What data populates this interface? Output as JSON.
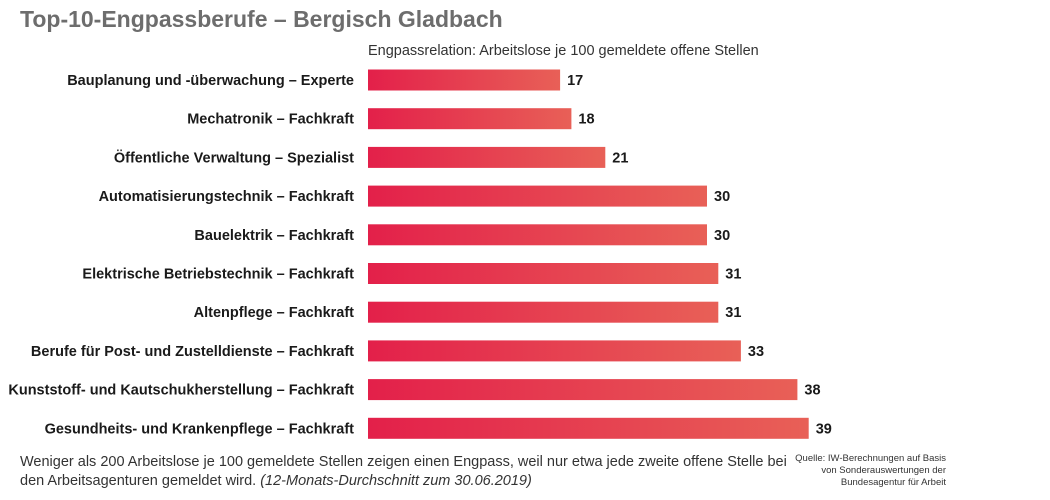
{
  "title": "Top-10-Engpassberufe – Bergisch Gladbach",
  "chart_data": {
    "type": "bar",
    "orientation": "horizontal",
    "subtitle": "Engpassrelation: Arbeitslose je 100 gemeldete offene Stellen",
    "categories": [
      "Bauplanung und -überwachung – Experte",
      "Mechatronik – Fachkraft",
      "Öffentliche Verwaltung – Spezialist",
      "Automatisierungstechnik – Fachkraft",
      "Bauelektrik – Fachkraft",
      "Elektrische Betriebstechnik – Fachkraft",
      "Altenpflege – Fachkraft",
      "Berufe für Post- und Zustelldienste – Fachkraft",
      "Kunststoff- und Kautschukherstellung – Fachkraft",
      "Gesundheits- und Krankenpflege – Fachkraft"
    ],
    "values": [
      17,
      18,
      21,
      30,
      30,
      31,
      31,
      33,
      38,
      39
    ],
    "xlim": [
      0,
      40
    ],
    "grid": false,
    "data_labels": true,
    "bar_gradient": [
      "#e3204a",
      "#e86057"
    ]
  },
  "note": {
    "text": "Weniger als 200 Arbeitslose je 100 gemeldete Stellen zeigen einen Engpass, weil nur etwa jede zweite offene Stelle bei den Arbeitsagenturen gemeldet wird.",
    "period": "(12-Monats-Durchschnitt zum 30.06.2019)"
  },
  "source": "Quelle: IW-Berechnungen auf Basis von Sonderauswertungen der Bundesagentur für Arbeit"
}
